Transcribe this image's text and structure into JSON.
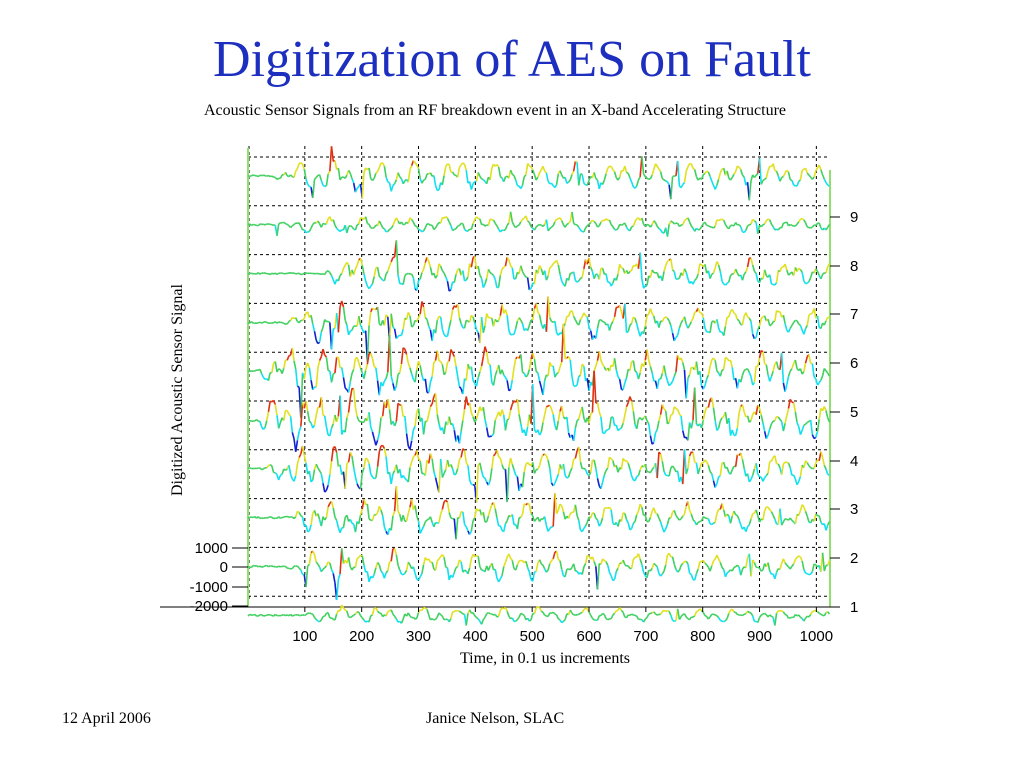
{
  "slide": {
    "title": "Digitization of AES on Fault",
    "footer_date": "12 April 2006",
    "footer_author": "Janice Nelson, SLAC"
  },
  "chart_data": {
    "type": "line",
    "title": "Acoustic Sensor Signals from an RF breakdown event in an X-band Accelerating Structure",
    "xlabel": "Time, in 0.1 us increments",
    "ylabel": "Digitized Acoustic Sensor Signal",
    "xlim": [
      0,
      1024
    ],
    "x_ticks": [
      "100",
      "200",
      "300",
      "400",
      "500",
      "600",
      "700",
      "800",
      "900",
      "1000"
    ],
    "y_ticks_left": [
      "1000",
      "0",
      "-1000",
      "-2000"
    ],
    "y_ticks_right": [
      "1",
      "2",
      "3",
      "4",
      "5",
      "6",
      "7",
      "8",
      "9"
    ],
    "channels": [
      1,
      2,
      3,
      4,
      5,
      6,
      7,
      8,
      9,
      10
    ],
    "grid": "dashed baseline per channel",
    "colormap": [
      "#1020d0",
      "#10e0f0",
      "#40d060",
      "#e0e020",
      "#e03010"
    ]
  }
}
